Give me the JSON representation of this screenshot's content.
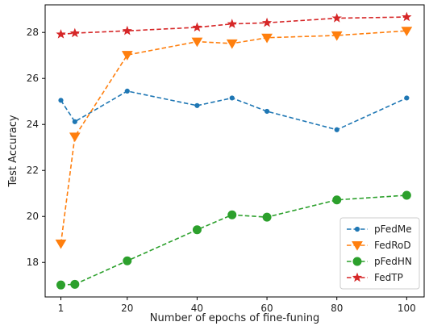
{
  "chart_data": {
    "type": "line",
    "title": "",
    "xlabel": "Number of epochs of fine-funing",
    "ylabel": "Test Accuracy",
    "xlim": [
      -3.5,
      105
    ],
    "ylim": [
      16.5,
      29.2
    ],
    "xticks": [
      1,
      20,
      40,
      60,
      80,
      100
    ],
    "yticks": [
      18,
      20,
      22,
      24,
      26,
      28
    ],
    "grid": false,
    "legend_position": "bottom-right",
    "series": [
      {
        "name": "pFedMe",
        "color": "#1f77b4",
        "marker": "dot",
        "x": [
          1,
          5,
          20,
          40,
          50,
          60,
          80,
          100
        ],
        "y": [
          25.05,
          24.12,
          25.45,
          24.82,
          25.15,
          24.57,
          23.77,
          25.15
        ]
      },
      {
        "name": "FedRoD",
        "color": "#ff7f0e",
        "marker": "triangle-down",
        "x": [
          1,
          5,
          20,
          40,
          50,
          60,
          80,
          100
        ],
        "y": [
          18.82,
          23.47,
          27.02,
          27.6,
          27.52,
          27.77,
          27.87,
          28.07
        ]
      },
      {
        "name": "pFedHN",
        "color": "#2ca02c",
        "marker": "circle",
        "x": [
          1,
          5,
          20,
          40,
          50,
          60,
          80,
          100
        ],
        "y": [
          17.02,
          17.05,
          18.07,
          19.42,
          20.07,
          19.97,
          20.72,
          20.92
        ]
      },
      {
        "name": "FedTP",
        "color": "#d62728",
        "marker": "star",
        "x": [
          1,
          5,
          20,
          40,
          50,
          60,
          80,
          100
        ],
        "y": [
          27.92,
          27.97,
          28.07,
          28.22,
          28.37,
          28.42,
          28.62,
          28.67
        ]
      }
    ]
  }
}
